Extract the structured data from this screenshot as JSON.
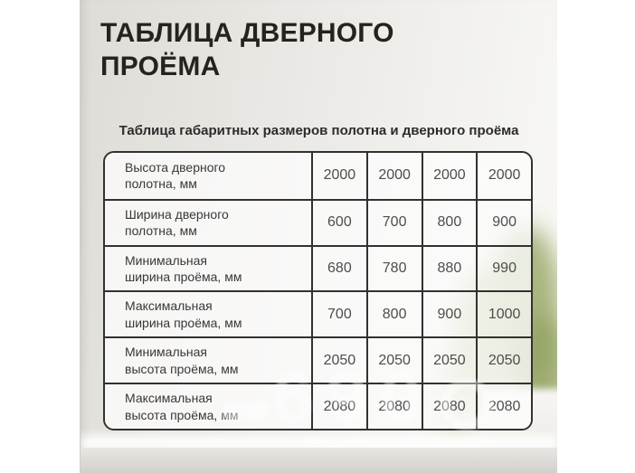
{
  "page": {
    "title": "ТАБЛИЦА ДВЕРНОГО ПРОЁМА",
    "subtitle": "Таблица габаритных размеров полотна и дверного проёма",
    "watermark": "690"
  },
  "colors": {
    "title_text": "#26221d",
    "table_border": "#333130",
    "cell_background": "rgba(253,253,252,0.78)",
    "photo_background_left": "#dedcd6",
    "photo_background_right": "#faf9f7",
    "plant_green": "#9fae71"
  },
  "chart_data": {
    "type": "table",
    "title": "Таблица габаритных размеров полотна и дверного проёма",
    "rows": [
      {
        "label": "Высота дверного\nполотна, мм",
        "values": [
          "2000",
          "2000",
          "2000",
          "2000"
        ]
      },
      {
        "label": "Ширина дверного\nполотна, мм",
        "values": [
          "600",
          "700",
          "800",
          "900"
        ]
      },
      {
        "label": "Минимальная\nширина проёма, мм",
        "values": [
          "680",
          "780",
          "880",
          "990"
        ]
      },
      {
        "label": "Максимальная\nширина проёма, мм",
        "values": [
          "700",
          "800",
          "900",
          "1000"
        ]
      },
      {
        "label": "Минимальная\nвысота проёма, мм",
        "values": [
          "2050",
          "2050",
          "2050",
          "2050"
        ]
      },
      {
        "label": "Максимальная\nвысота проёма, мм",
        "values": [
          "2080",
          "2080",
          "2080",
          "2080"
        ]
      }
    ]
  }
}
